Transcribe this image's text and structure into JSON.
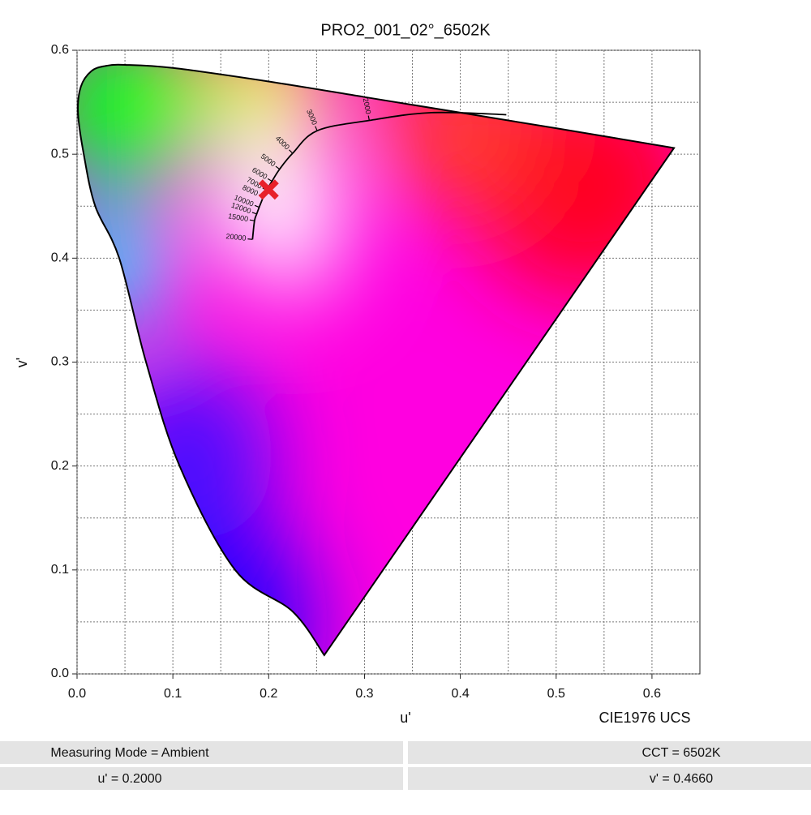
{
  "chart_data": {
    "type": "chromaticity",
    "title": "PRO2_001_02°_6502K",
    "x_label": "u'",
    "y_label": "v'",
    "space_label": "CIE1976 UCS",
    "xlim": [
      0,
      0.65
    ],
    "ylim": [
      0,
      0.6
    ],
    "xticks": [
      {
        "value": 0,
        "label": "0.0"
      },
      0.1,
      0.2,
      0.3,
      0.4,
      0.5,
      0.6
    ],
    "yticks": [
      {
        "value": 0,
        "label": "0.0"
      },
      0.1,
      0.2,
      0.3,
      0.4,
      0.5,
      0.6
    ],
    "minor_xticks": [
      0.05,
      0.15,
      0.25,
      0.35,
      0.45,
      0.55
    ],
    "minor_yticks": [
      0.05,
      0.15,
      0.25,
      0.35,
      0.45,
      0.55
    ],
    "grid": true,
    "locus": {
      "u": [
        0.258,
        0.225,
        0.165,
        0.107,
        0.072,
        0.044,
        0.019,
        0.007,
        0.001,
        0.004,
        0.015,
        0.03,
        0.05,
        0.1,
        0.2,
        0.3,
        0.4,
        0.5,
        0.623
      ],
      "v": [
        0.018,
        0.06,
        0.1,
        0.2,
        0.3,
        0.4,
        0.45,
        0.5,
        0.54,
        0.565,
        0.58,
        0.585,
        0.586,
        0.583,
        0.57,
        0.555,
        0.54,
        0.525,
        0.506
      ]
    },
    "planck": {
      "u": [
        0.448,
        0.37,
        0.305,
        0.2506,
        0.225,
        0.2114,
        0.2034,
        0.2003,
        0.1981,
        0.1945,
        0.1901,
        0.1875,
        0.1852,
        0.1831
      ],
      "v": [
        0.538,
        0.54,
        0.5325,
        0.5226,
        0.5009,
        0.4856,
        0.474,
        0.4693,
        0.4652,
        0.459,
        0.449,
        0.4425,
        0.436,
        0.418
      ]
    },
    "cct_ticks": {
      "k": [
        2000,
        3000,
        4000,
        5000,
        6000,
        7000,
        8000,
        10000,
        12000,
        15000,
        20000
      ],
      "u": [
        0.305,
        0.2506,
        0.225,
        0.2114,
        0.2034,
        0.1981,
        0.1945,
        0.1901,
        0.1875,
        0.1852,
        0.1831
      ],
      "v": [
        0.5325,
        0.5226,
        0.5009,
        0.4856,
        0.474,
        0.4652,
        0.459,
        0.449,
        0.4425,
        0.436,
        0.418
      ]
    },
    "measurement": {
      "u": 0.2,
      "v": 0.466,
      "color": "#e8202a"
    },
    "status": {
      "mode": "Measuring Mode = Ambient",
      "cct": "CCT = 6502K",
      "u": "u' = 0.2000",
      "v": "v' = 0.4660"
    }
  }
}
